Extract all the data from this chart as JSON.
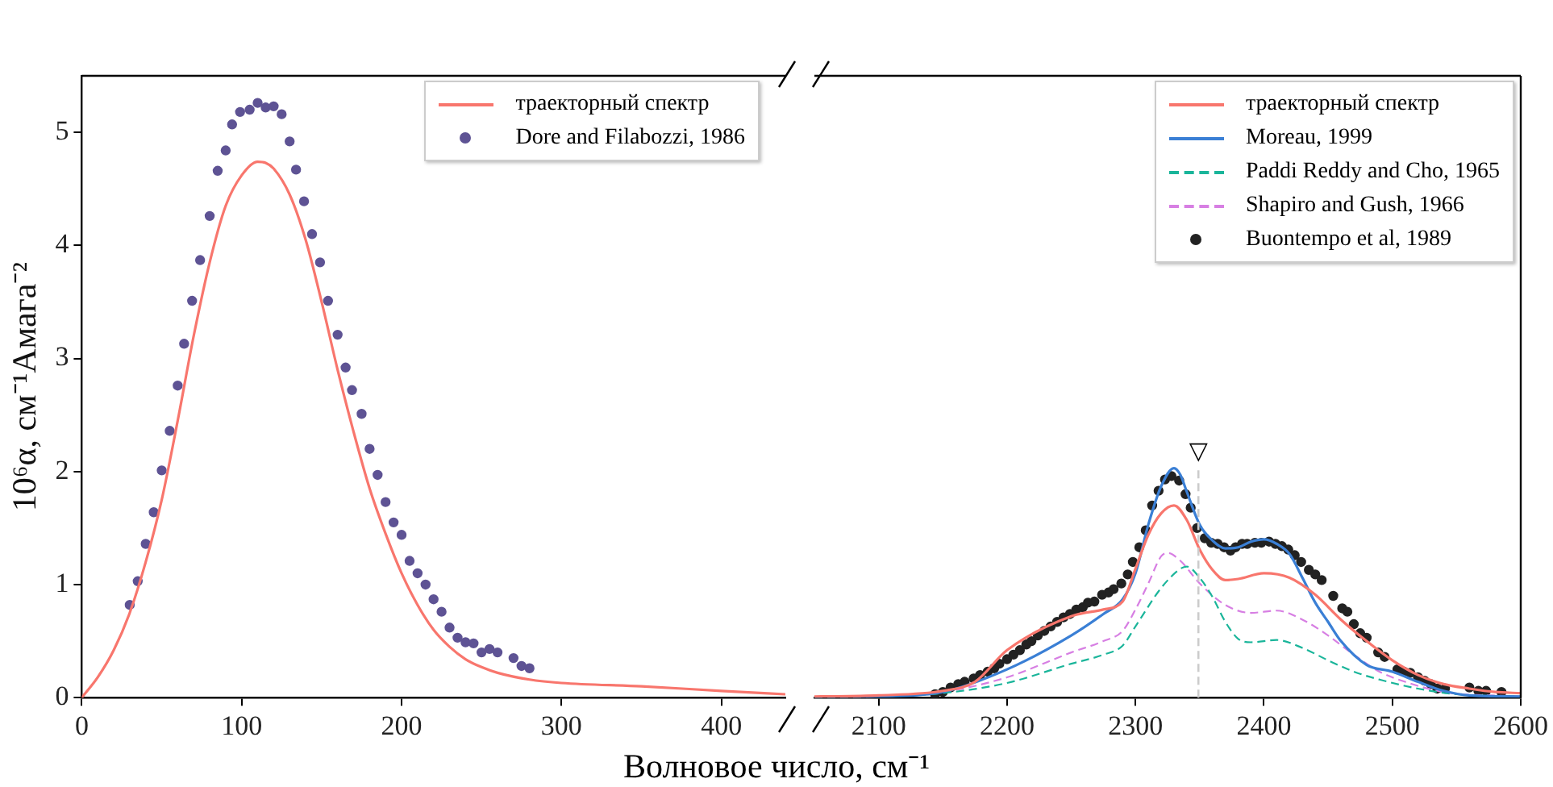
{
  "chart_data": [
    {
      "type": "line",
      "ylabel": "10⁶α, см⁻¹Амага⁻²",
      "xlabel": "Волновое число, см⁻¹",
      "xlim": [
        0,
        440
      ],
      "xticks": [
        0,
        100,
        200,
        300,
        400
      ],
      "ylim": [
        0,
        5.5
      ],
      "yticks": [
        0,
        1,
        2,
        3,
        4,
        5
      ],
      "legend": "top right",
      "series": [
        {
          "name": "траекторный спектр",
          "color": "#f8766d",
          "x": [
            0,
            10,
            20,
            30,
            40,
            50,
            60,
            70,
            80,
            90,
            100,
            110,
            115,
            120,
            130,
            140,
            150,
            160,
            170,
            180,
            190,
            200,
            210,
            220,
            230,
            240,
            250,
            260,
            280,
            300,
            350,
            400,
            440
          ],
          "values": [
            0,
            0.18,
            0.42,
            0.75,
            1.2,
            1.75,
            2.45,
            3.2,
            3.85,
            4.35,
            4.62,
            4.74,
            4.73,
            4.68,
            4.45,
            4.05,
            3.5,
            2.9,
            2.35,
            1.85,
            1.45,
            1.1,
            0.82,
            0.6,
            0.45,
            0.34,
            0.27,
            0.22,
            0.16,
            0.13,
            0.1,
            0.06,
            0.03
          ]
        },
        {
          "name": "Dore and Filabozzi, 1986",
          "type": "scatter",
          "marker": "circle",
          "color": "#5e5394",
          "x": [
            30,
            35,
            40,
            45,
            50,
            55,
            60,
            64,
            69,
            74,
            80,
            85,
            90,
            94,
            99,
            105,
            110,
            115,
            120,
            125,
            130,
            134,
            139,
            144,
            149,
            154,
            160,
            165,
            169,
            175,
            180,
            185,
            190,
            195,
            200,
            205,
            210,
            215,
            220,
            225,
            230,
            235,
            240,
            245,
            250,
            255,
            260,
            270,
            275,
            280
          ],
          "values": [
            0.82,
            1.03,
            1.36,
            1.64,
            2.01,
            2.36,
            2.76,
            3.13,
            3.51,
            3.87,
            4.26,
            4.66,
            4.84,
            5.07,
            5.18,
            5.2,
            5.26,
            5.22,
            5.23,
            5.16,
            4.92,
            4.67,
            4.39,
            4.1,
            3.85,
            3.51,
            3.21,
            2.92,
            2.72,
            2.51,
            2.2,
            1.97,
            1.73,
            1.55,
            1.44,
            1.21,
            1.1,
            1.0,
            0.87,
            0.76,
            0.62,
            0.53,
            0.49,
            0.48,
            0.4,
            0.43,
            0.4,
            0.35,
            0.28,
            0.26
          ]
        }
      ]
    },
    {
      "type": "line",
      "xlim": [
        2050,
        2600
      ],
      "xticks": [
        2100,
        2200,
        2300,
        2400,
        2500,
        2600
      ],
      "ylim": [
        0,
        5.5
      ],
      "yticks": [
        0,
        1,
        2,
        3,
        4,
        5
      ],
      "tick_labels": "x",
      "legend": "top right",
      "ref_lines": [
        {
          "axis": "x",
          "value": 2349,
          "label": "▽",
          "color": "#cccccc",
          "line_style": "dashed"
        }
      ],
      "series": [
        {
          "name": "траекторный спектр",
          "color": "#f8766d",
          "x": [
            2050,
            2100,
            2150,
            2175,
            2200,
            2250,
            2275,
            2290,
            2300,
            2310,
            2320,
            2330,
            2340,
            2350,
            2360,
            2370,
            2380,
            2400,
            2420,
            2440,
            2460,
            2480,
            2500,
            2520,
            2540,
            2560,
            2580,
            2600
          ],
          "values": [
            0.01,
            0.02,
            0.06,
            0.14,
            0.42,
            0.72,
            0.78,
            0.85,
            1.14,
            1.44,
            1.63,
            1.7,
            1.57,
            1.31,
            1.13,
            1.04,
            1.05,
            1.1,
            1.06,
            0.91,
            0.69,
            0.5,
            0.33,
            0.2,
            0.12,
            0.08,
            0.05,
            0.04
          ]
        },
        {
          "name": "Moreau, 1999",
          "color": "#3a7fd5",
          "x": [
            2050,
            2100,
            2150,
            2200,
            2250,
            2275,
            2290,
            2300,
            2310,
            2320,
            2330,
            2335,
            2340,
            2350,
            2360,
            2370,
            2380,
            2390,
            2400,
            2410,
            2420,
            2430,
            2440,
            2450,
            2460,
            2480,
            2500,
            2520,
            2540,
            2560,
            2600
          ],
          "values": [
            0,
            0.01,
            0.05,
            0.25,
            0.55,
            0.74,
            0.87,
            1.1,
            1.53,
            1.87,
            2.03,
            1.97,
            1.82,
            1.53,
            1.39,
            1.32,
            1.33,
            1.38,
            1.4,
            1.36,
            1.27,
            1.06,
            0.84,
            0.67,
            0.5,
            0.29,
            0.23,
            0.14,
            0.06,
            0.02,
            0.01
          ]
        },
        {
          "name": "Paddi Reddy and Cho, 1965",
          "color": "#1ab59a",
          "line_style": "dashed",
          "x": [
            2050,
            2100,
            2150,
            2200,
            2250,
            2275,
            2290,
            2300,
            2320,
            2335,
            2340,
            2350,
            2360,
            2370,
            2380,
            2390,
            2410,
            2430,
            2450,
            2470,
            2490,
            2520,
            2550,
            2600
          ],
          "values": [
            0,
            0.01,
            0.04,
            0.13,
            0.3,
            0.38,
            0.46,
            0.63,
            0.97,
            1.14,
            1.16,
            1.06,
            0.89,
            0.67,
            0.52,
            0.49,
            0.51,
            0.44,
            0.33,
            0.23,
            0.16,
            0.08,
            0.03,
            0.01
          ]
        },
        {
          "name": "Shapiro and Gush, 1966",
          "color": "#d77fe3",
          "line_style": "dashed",
          "x": [
            2050,
            2100,
            2150,
            2200,
            2250,
            2275,
            2290,
            2300,
            2310,
            2320,
            2325,
            2335,
            2350,
            2370,
            2390,
            2410,
            2430,
            2450,
            2470,
            2490,
            2510,
            2540,
            2600
          ],
          "values": [
            0,
            0.01,
            0.05,
            0.18,
            0.4,
            0.5,
            0.59,
            0.78,
            1.01,
            1.25,
            1.28,
            1.21,
            1.01,
            0.82,
            0.75,
            0.77,
            0.69,
            0.55,
            0.38,
            0.23,
            0.14,
            0.05,
            0.01
          ]
        },
        {
          "name": "Buontempo et al, 1989",
          "type": "scatter",
          "marker": "circle",
          "color": "#222222",
          "x": [
            2144,
            2150,
            2156,
            2162,
            2167,
            2174,
            2179,
            2185,
            2190,
            2194,
            2200,
            2205,
            2210,
            2215,
            2219,
            2224,
            2229,
            2234,
            2239,
            2244,
            2249,
            2254,
            2259,
            2263,
            2268,
            2274,
            2279,
            2283,
            2289,
            2294,
            2298,
            2303,
            2308,
            2313,
            2318,
            2323,
            2328,
            2334,
            2339,
            2343,
            2348,
            2354,
            2359,
            2364,
            2369,
            2374,
            2378,
            2383,
            2387,
            2393,
            2398,
            2404,
            2409,
            2414,
            2419,
            2424,
            2429,
            2435,
            2440,
            2445,
            2454,
            2461,
            2465,
            2470,
            2475,
            2480,
            2489,
            2494,
            2504,
            2509,
            2514,
            2520,
            2525,
            2530,
            2535,
            2541,
            2560,
            2567,
            2573,
            2585
          ],
          "values": [
            0.03,
            0.05,
            0.09,
            0.12,
            0.14,
            0.17,
            0.2,
            0.23,
            0.26,
            0.3,
            0.34,
            0.38,
            0.42,
            0.47,
            0.5,
            0.55,
            0.59,
            0.63,
            0.67,
            0.71,
            0.74,
            0.78,
            0.8,
            0.84,
            0.85,
            0.91,
            0.93,
            0.96,
            1.01,
            1.09,
            1.2,
            1.33,
            1.48,
            1.7,
            1.83,
            1.93,
            1.96,
            1.92,
            1.8,
            1.68,
            1.5,
            1.41,
            1.37,
            1.36,
            1.33,
            1.3,
            1.33,
            1.36,
            1.36,
            1.37,
            1.37,
            1.38,
            1.36,
            1.34,
            1.31,
            1.26,
            1.2,
            1.13,
            1.09,
            1.04,
            0.9,
            0.79,
            0.76,
            0.65,
            0.57,
            0.53,
            0.4,
            0.36,
            0.25,
            0.23,
            0.22,
            0.18,
            0.15,
            0.12,
            0.08,
            0.08,
            0.09,
            0.06,
            0.06,
            0.05
          ]
        }
      ]
    }
  ]
}
